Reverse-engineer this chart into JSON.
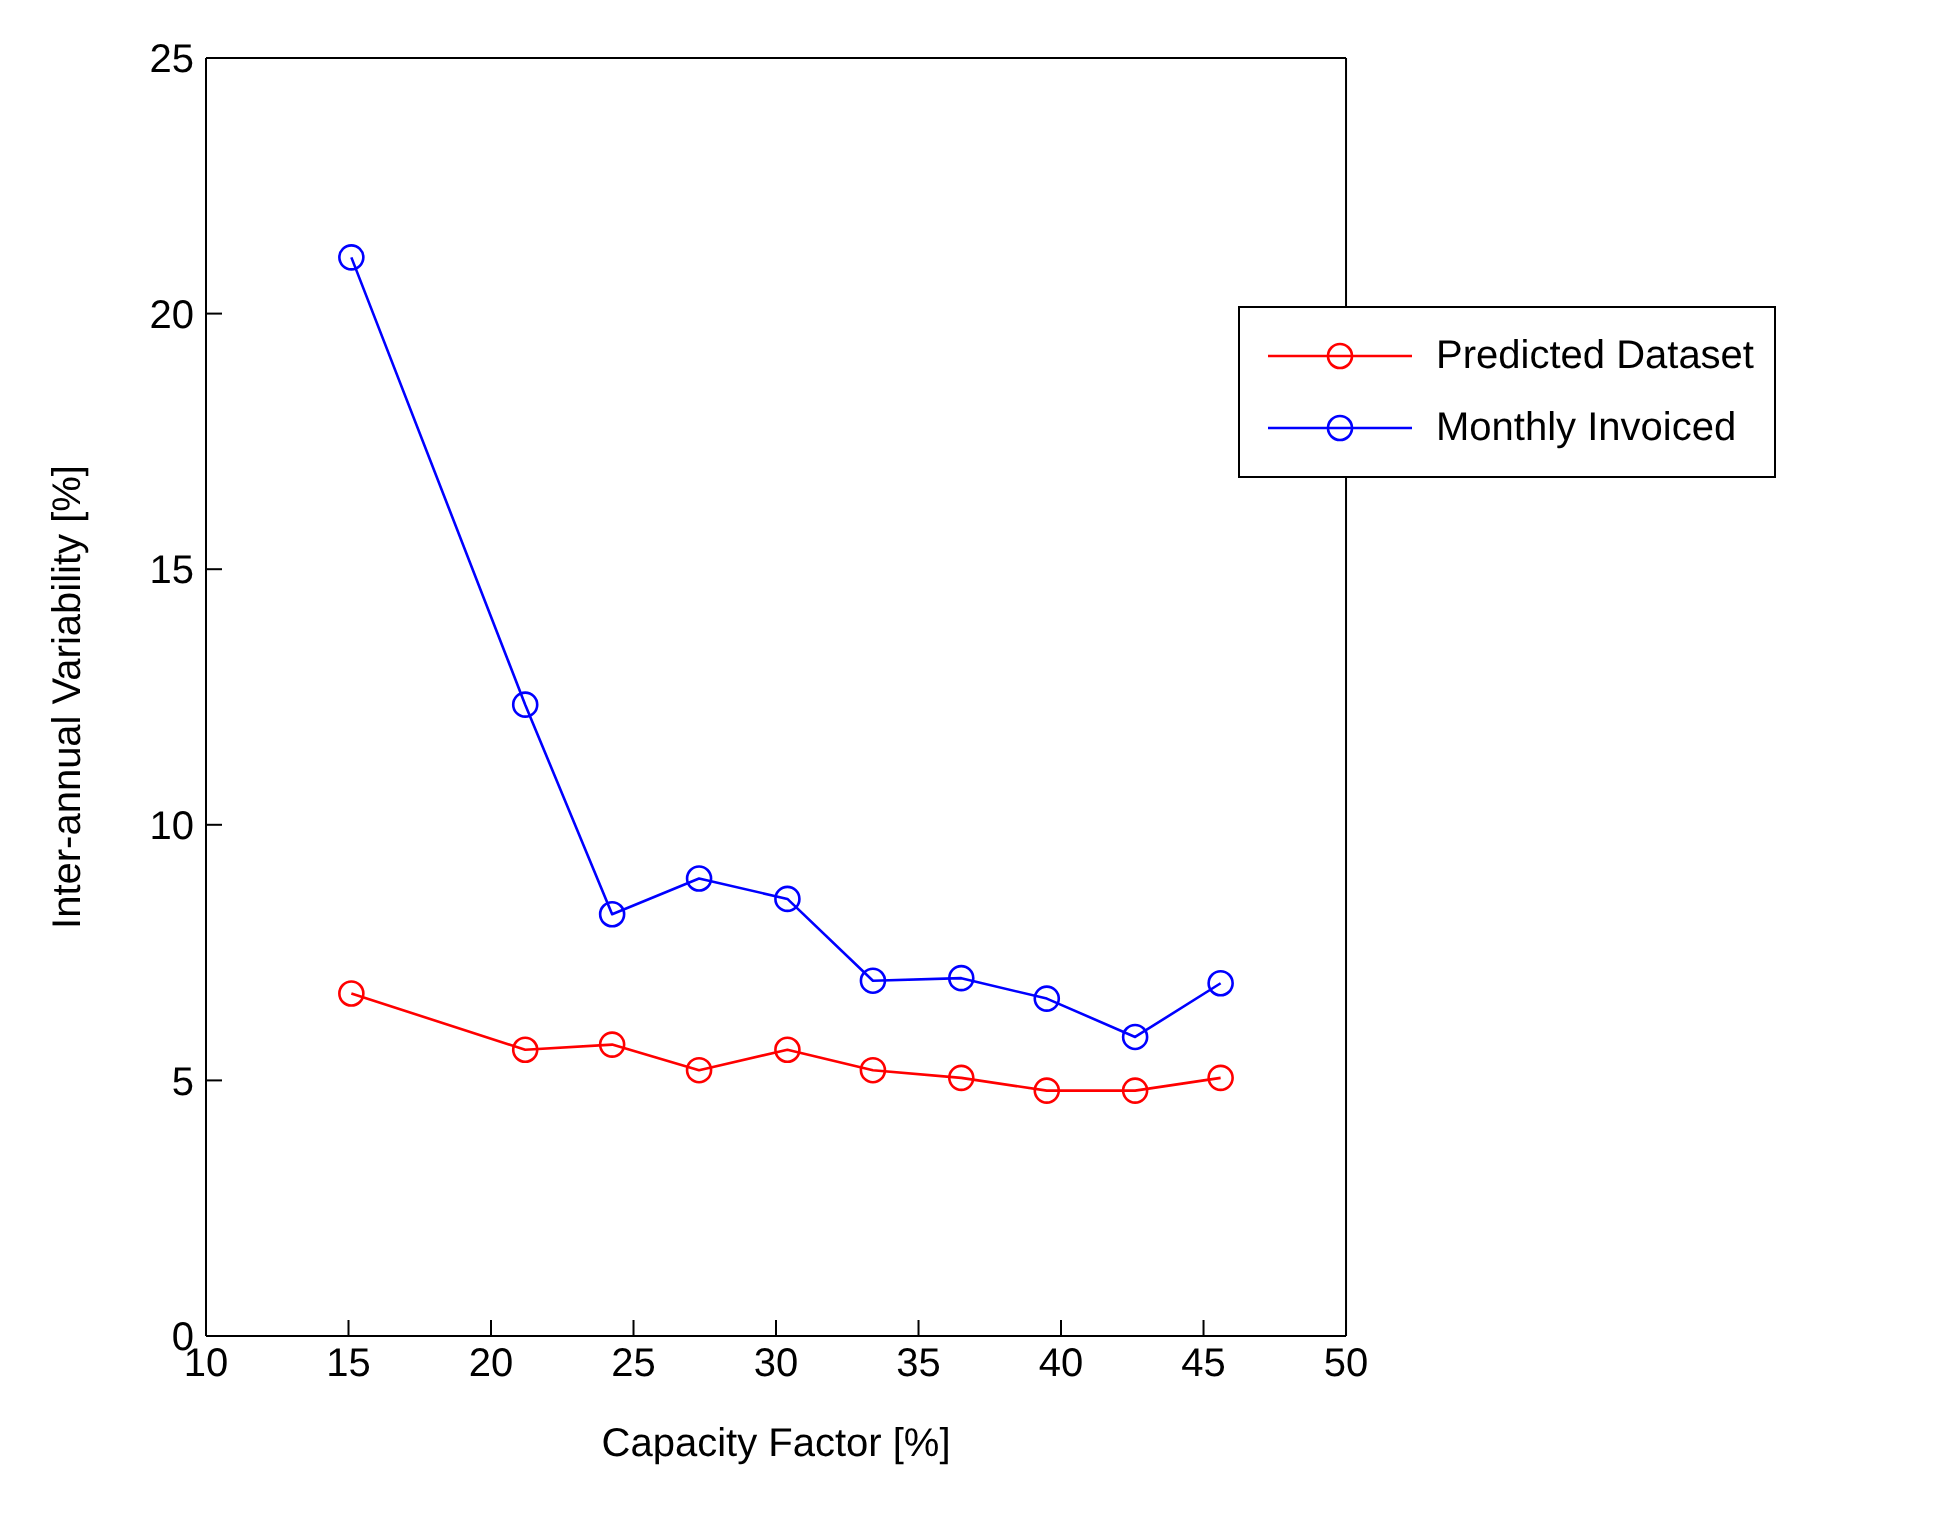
{
  "chart_data": {
    "type": "line",
    "xlabel": "Capacity Factor [%]",
    "ylabel": "Inter-annual Variability [%]",
    "x": [
      15.1,
      21.2,
      24.25,
      27.3,
      30.4,
      33.4,
      36.5,
      39.5,
      42.6,
      45.6
    ],
    "series": [
      {
        "name": "Predicted Dataset",
        "color": "#ff0000",
        "values": [
          6.7,
          5.6,
          5.7,
          5.2,
          5.6,
          5.2,
          5.05,
          4.8,
          4.8,
          5.05
        ]
      },
      {
        "name": "Monthly Invoiced",
        "color": "#0000ff",
        "values": [
          21.1,
          12.35,
          8.25,
          8.95,
          8.55,
          6.95,
          7.0,
          6.6,
          5.85,
          6.9
        ]
      }
    ],
    "xlim": [
      10,
      50
    ],
    "xticks": [
      10,
      15,
      20,
      25,
      30,
      35,
      40,
      45,
      50
    ],
    "ylim": [
      0,
      25
    ],
    "yticks": [
      0,
      5,
      10,
      15,
      20,
      25
    ],
    "grid": false,
    "legend": "top right",
    "marker": "circle",
    "line_style": "solid"
  }
}
